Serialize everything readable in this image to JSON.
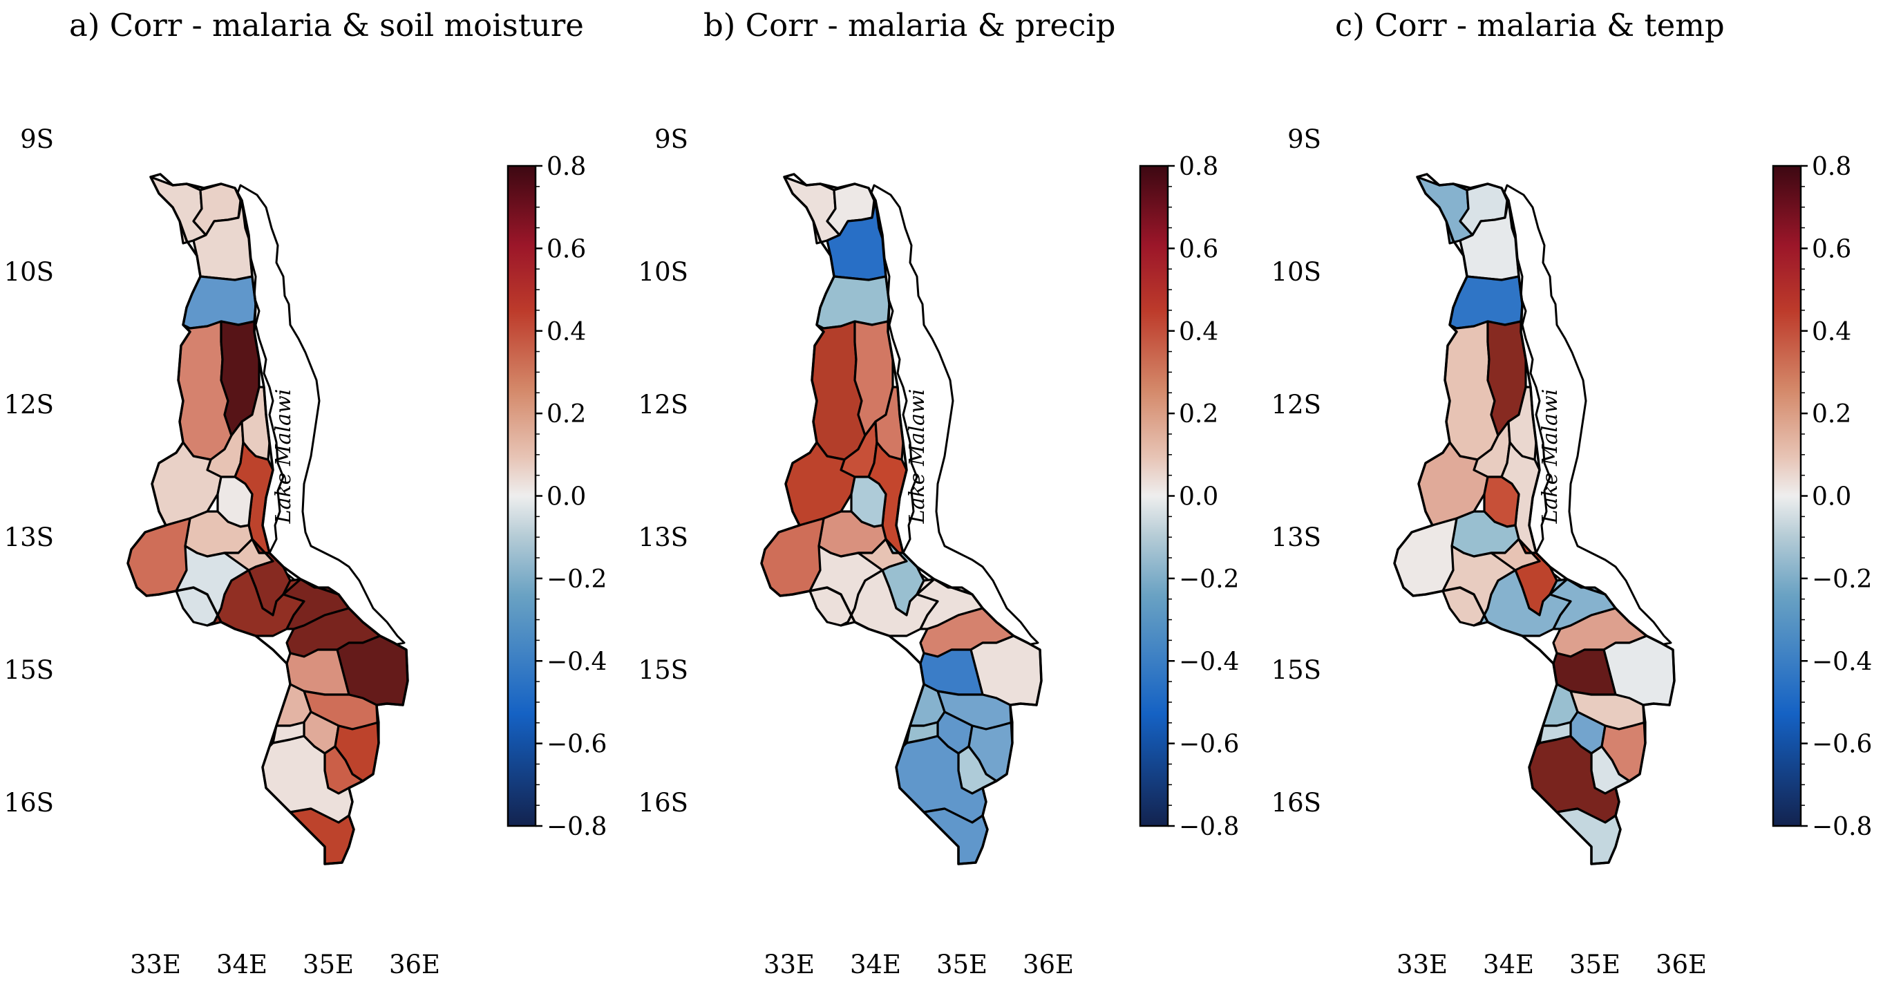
{
  "panels": [
    {
      "title": "a) Corr - malaria & soil moisture",
      "lake_label": "Lake Malawi",
      "colorbar": {
        "min": -0.8,
        "max": 0.8
      },
      "values": [
        0.08,
        0.1,
        0.08,
        -0.35,
        0.28,
        0.72,
        0.15,
        0.12,
        0.1,
        0.42,
        0.02,
        0.15,
        0.32,
        -0.05,
        0.15,
        0.58,
        0.55,
        0.62,
        0.62,
        0.68,
        0.25,
        0.32,
        0.18,
        0.2,
        0.05,
        0.42,
        0.35,
        0.05,
        0.42
      ]
    },
    {
      "title": "b) Corr - malaria & precip",
      "lake_label": "Lake Malawi",
      "colorbar": {
        "min": -0.8,
        "max": 0.8
      },
      "values": [
        0.05,
        0.02,
        -0.5,
        -0.2,
        0.45,
        0.3,
        0.38,
        0.3,
        0.42,
        0.4,
        -0.15,
        0.25,
        0.32,
        0.05,
        0.15,
        -0.2,
        0.05,
        0.05,
        0.28,
        0.05,
        -0.45,
        -0.3,
        -0.25,
        -0.35,
        -0.2,
        -0.3,
        -0.15,
        -0.35,
        -0.35
      ]
    },
    {
      "title": "c) Corr - malaria & temp",
      "lake_label": "Lake Malawi",
      "colorbar": {
        "min": -0.8,
        "max": 0.8
      },
      "values": [
        -0.25,
        -0.05,
        -0.02,
        -0.48,
        0.15,
        0.58,
        0.12,
        0.08,
        0.2,
        0.08,
        0.38,
        -0.2,
        0.02,
        0.12,
        0.15,
        0.42,
        -0.25,
        -0.25,
        0.22,
        -0.02,
        0.68,
        0.12,
        -0.2,
        -0.3,
        -0.1,
        0.28,
        -0.05,
        0.62,
        -0.1
      ]
    }
  ],
  "axes": {
    "lat_labels": [
      "9S",
      "10S",
      "12S",
      "13S",
      "15S",
      "16S"
    ],
    "lon_labels": [
      "33E",
      "34E",
      "35E",
      "36E"
    ]
  },
  "colorbar_ticks": [
    "0.8",
    "0.6",
    "0.4",
    "0.2",
    "0.0",
    "−0.2",
    "−0.4",
    "−0.6",
    "−0.8"
  ],
  "colormap": {
    "neg_end": "#13234f",
    "neg_mid": "#1562c4",
    "neg_light": "#99bfd0",
    "zero": "#eeeeee",
    "pos_light": "#e7c3b4",
    "pos_mid": "#c4462d",
    "pos_end": "#3c0812"
  }
}
